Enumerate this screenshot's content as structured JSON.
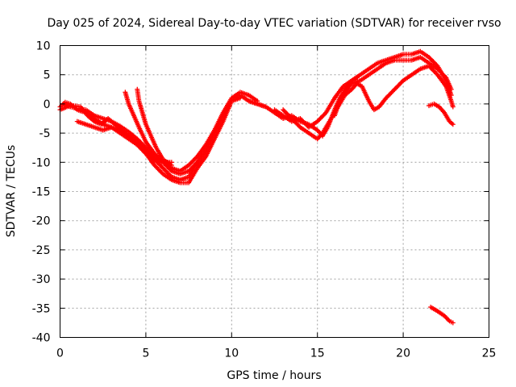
{
  "chart_data": {
    "type": "scatter",
    "title": "Day 025 of 2024, Sidereal Day-to-day VTEC variation (SDTVAR) for receiver rvso",
    "xlabel": "GPS time / hours",
    "ylabel": "SDTVAR / TECUs",
    "xlim": [
      0,
      25
    ],
    "ylim": [
      -40,
      10
    ],
    "xticks": [
      0,
      5,
      10,
      15,
      20,
      25
    ],
    "yticks": [
      10,
      5,
      0,
      -5,
      -10,
      -15,
      -20,
      -25,
      -30,
      -35,
      -40
    ],
    "grid": true,
    "marker_color": "#ff0000",
    "series": [
      {
        "name": "track-1",
        "points": [
          [
            0.0,
            -0.5
          ],
          [
            0.3,
            0.3
          ],
          [
            0.6,
            0.0
          ],
          [
            1.0,
            -1.0
          ],
          [
            1.5,
            -1.5
          ],
          [
            2.0,
            -2.5
          ],
          [
            2.5,
            -3.5
          ],
          [
            3.0,
            -4.0
          ],
          [
            3.5,
            -5.0
          ],
          [
            4.0,
            -6.0
          ],
          [
            4.5,
            -7.0
          ],
          [
            5.0,
            -8.5
          ],
          [
            5.5,
            -10.5
          ],
          [
            6.0,
            -12.0
          ],
          [
            6.5,
            -13.0
          ],
          [
            7.0,
            -13.5
          ],
          [
            7.5,
            -13.5
          ],
          [
            8.0,
            -11.0
          ],
          [
            8.5,
            -9.0
          ],
          [
            9.0,
            -6.0
          ],
          [
            9.5,
            -3.0
          ],
          [
            10.0,
            0.5
          ],
          [
            10.5,
            1.5
          ],
          [
            11.0,
            0.5
          ],
          [
            11.5,
            0.0
          ],
          [
            12.0,
            -0.5
          ]
        ]
      },
      {
        "name": "track-2",
        "points": [
          [
            0.0,
            -1.0
          ],
          [
            0.4,
            -0.5
          ],
          [
            0.8,
            -0.3
          ],
          [
            1.2,
            -0.5
          ],
          [
            1.6,
            -2.0
          ],
          [
            2.0,
            -3.0
          ],
          [
            2.4,
            -3.5
          ],
          [
            2.8,
            -2.5
          ],
          [
            3.2,
            -3.5
          ],
          [
            3.6,
            -4.5
          ],
          [
            4.0,
            -5.5
          ],
          [
            4.5,
            -6.5
          ],
          [
            5.0,
            -8.0
          ],
          [
            5.5,
            -9.5
          ],
          [
            6.0,
            -11.0
          ],
          [
            6.5,
            -12.5
          ],
          [
            7.0,
            -13.0
          ],
          [
            7.5,
            -12.5
          ],
          [
            8.0,
            -10.0
          ],
          [
            8.5,
            -8.0
          ],
          [
            9.0,
            -5.0
          ],
          [
            9.5,
            -2.0
          ],
          [
            10.0,
            0.5
          ],
          [
            10.5,
            1.0
          ]
        ]
      },
      {
        "name": "track-3",
        "points": [
          [
            0.2,
            0.0
          ],
          [
            0.6,
            -0.5
          ],
          [
            1.0,
            -0.8
          ],
          [
            1.5,
            -1.0
          ],
          [
            2.0,
            -2.0
          ],
          [
            2.5,
            -2.5
          ],
          [
            3.0,
            -3.0
          ],
          [
            3.5,
            -3.8
          ],
          [
            4.0,
            -4.8
          ],
          [
            4.5,
            -6.0
          ],
          [
            5.0,
            -7.5
          ],
          [
            5.5,
            -9.0
          ],
          [
            6.0,
            -10.0
          ],
          [
            6.5,
            -11.0
          ],
          [
            7.0,
            -11.5
          ],
          [
            7.5,
            -10.5
          ],
          [
            8.0,
            -9.0
          ],
          [
            8.5,
            -7.0
          ],
          [
            9.0,
            -4.5
          ],
          [
            9.5,
            -1.5
          ],
          [
            10.0,
            1.0
          ],
          [
            10.5,
            2.0
          ],
          [
            11.0,
            1.5
          ],
          [
            11.5,
            0.5
          ]
        ]
      },
      {
        "name": "track-4",
        "points": [
          [
            1.0,
            -3.0
          ],
          [
            1.5,
            -3.5
          ],
          [
            2.0,
            -4.0
          ],
          [
            2.5,
            -4.5
          ],
          [
            3.0,
            -4.0
          ],
          [
            3.5,
            -4.5
          ],
          [
            4.0,
            -5.5
          ],
          [
            4.5,
            -7.0
          ],
          [
            5.0,
            -8.5
          ],
          [
            5.5,
            -9.5
          ],
          [
            6.0,
            -10.0
          ],
          [
            6.5,
            -10.0
          ]
        ]
      },
      {
        "name": "track-5",
        "points": [
          [
            3.8,
            2.0
          ],
          [
            4.0,
            0.0
          ],
          [
            4.3,
            -2.0
          ],
          [
            4.6,
            -4.0
          ],
          [
            5.0,
            -6.5
          ],
          [
            5.5,
            -8.5
          ],
          [
            6.0,
            -10.0
          ],
          [
            6.5,
            -11.5
          ],
          [
            7.0,
            -12.0
          ],
          [
            7.5,
            -11.5
          ],
          [
            8.0,
            -10.0
          ]
        ]
      },
      {
        "name": "track-6",
        "points": [
          [
            4.5,
            2.5
          ],
          [
            4.6,
            0.5
          ],
          [
            4.8,
            -1.5
          ],
          [
            5.0,
            -3.5
          ],
          [
            5.3,
            -5.5
          ],
          [
            5.6,
            -7.5
          ],
          [
            6.0,
            -9.5
          ],
          [
            6.5,
            -10.5
          ]
        ]
      },
      {
        "name": "track-7",
        "points": [
          [
            11.0,
            0.5
          ],
          [
            11.5,
            0.0
          ],
          [
            12.0,
            -0.5
          ],
          [
            12.5,
            -1.5
          ],
          [
            13.0,
            -2.5
          ],
          [
            13.5,
            -2.0
          ],
          [
            14.0,
            -3.0
          ],
          [
            14.5,
            -3.5
          ],
          [
            15.0,
            -4.5
          ],
          [
            15.3,
            -5.5
          ],
          [
            15.6,
            -4.0
          ],
          [
            16.0,
            -1.0
          ],
          [
            16.3,
            1.0
          ],
          [
            16.7,
            2.5
          ],
          [
            17.0,
            3.5
          ],
          [
            17.5,
            4.0
          ],
          [
            18.0,
            5.0
          ],
          [
            18.5,
            6.0
          ],
          [
            19.0,
            7.0
          ],
          [
            19.5,
            7.5
          ],
          [
            20.0,
            7.5
          ],
          [
            20.5,
            7.5
          ],
          [
            21.0,
            8.0
          ],
          [
            21.5,
            7.0
          ],
          [
            22.0,
            6.0
          ],
          [
            22.5,
            4.5
          ],
          [
            22.8,
            2.5
          ]
        ]
      },
      {
        "name": "track-8",
        "points": [
          [
            12.5,
            -1.0
          ],
          [
            13.0,
            -2.0
          ],
          [
            13.5,
            -3.0
          ],
          [
            14.0,
            -2.5
          ],
          [
            14.5,
            -4.0
          ],
          [
            15.0,
            -3.0
          ],
          [
            15.5,
            -1.5
          ],
          [
            16.0,
            1.0
          ],
          [
            16.5,
            3.0
          ],
          [
            17.0,
            4.0
          ],
          [
            17.5,
            5.0
          ],
          [
            18.0,
            6.0
          ],
          [
            18.5,
            7.0
          ],
          [
            19.0,
            7.5
          ],
          [
            19.5,
            8.0
          ],
          [
            20.0,
            8.5
          ],
          [
            20.5,
            8.5
          ],
          [
            21.0,
            9.0
          ],
          [
            21.5,
            8.0
          ],
          [
            22.0,
            6.5
          ],
          [
            22.5,
            4.0
          ],
          [
            22.8,
            1.5
          ]
        ]
      },
      {
        "name": "track-9",
        "points": [
          [
            13.0,
            -1.0
          ],
          [
            13.5,
            -2.5
          ],
          [
            14.0,
            -4.0
          ],
          [
            14.5,
            -5.0
          ],
          [
            15.0,
            -6.0
          ],
          [
            15.3,
            -5.0
          ],
          [
            15.6,
            -3.5
          ],
          [
            16.0,
            -1.5
          ],
          [
            16.3,
            0.0
          ],
          [
            16.6,
            1.5
          ],
          [
            17.0,
            2.5
          ],
          [
            17.3,
            3.5
          ],
          [
            17.6,
            3.0
          ],
          [
            18.0,
            0.5
          ],
          [
            18.3,
            -1.0
          ],
          [
            18.6,
            -0.5
          ],
          [
            19.0,
            1.0
          ],
          [
            19.5,
            2.5
          ],
          [
            20.0,
            4.0
          ],
          [
            20.5,
            5.0
          ],
          [
            21.0,
            6.0
          ],
          [
            21.5,
            6.5
          ],
          [
            22.0,
            5.0
          ],
          [
            22.5,
            3.0
          ],
          [
            22.8,
            0.5
          ],
          [
            22.9,
            -0.5
          ]
        ]
      },
      {
        "name": "track-10",
        "points": [
          [
            16.0,
            -2.0
          ],
          [
            16.3,
            0.5
          ],
          [
            16.6,
            2.5
          ],
          [
            17.0,
            4.0
          ],
          [
            17.3,
            4.5
          ]
        ]
      },
      {
        "name": "track-11",
        "points": [
          [
            21.5,
            -0.3
          ],
          [
            21.8,
            0.0
          ],
          [
            22.1,
            -0.5
          ],
          [
            22.4,
            -1.5
          ],
          [
            22.7,
            -3.0
          ],
          [
            22.9,
            -3.5
          ]
        ]
      },
      {
        "name": "track-12",
        "points": [
          [
            21.6,
            -34.8
          ],
          [
            22.0,
            -35.5
          ],
          [
            22.4,
            -36.3
          ],
          [
            22.7,
            -37.2
          ],
          [
            22.9,
            -37.5
          ]
        ]
      }
    ]
  }
}
